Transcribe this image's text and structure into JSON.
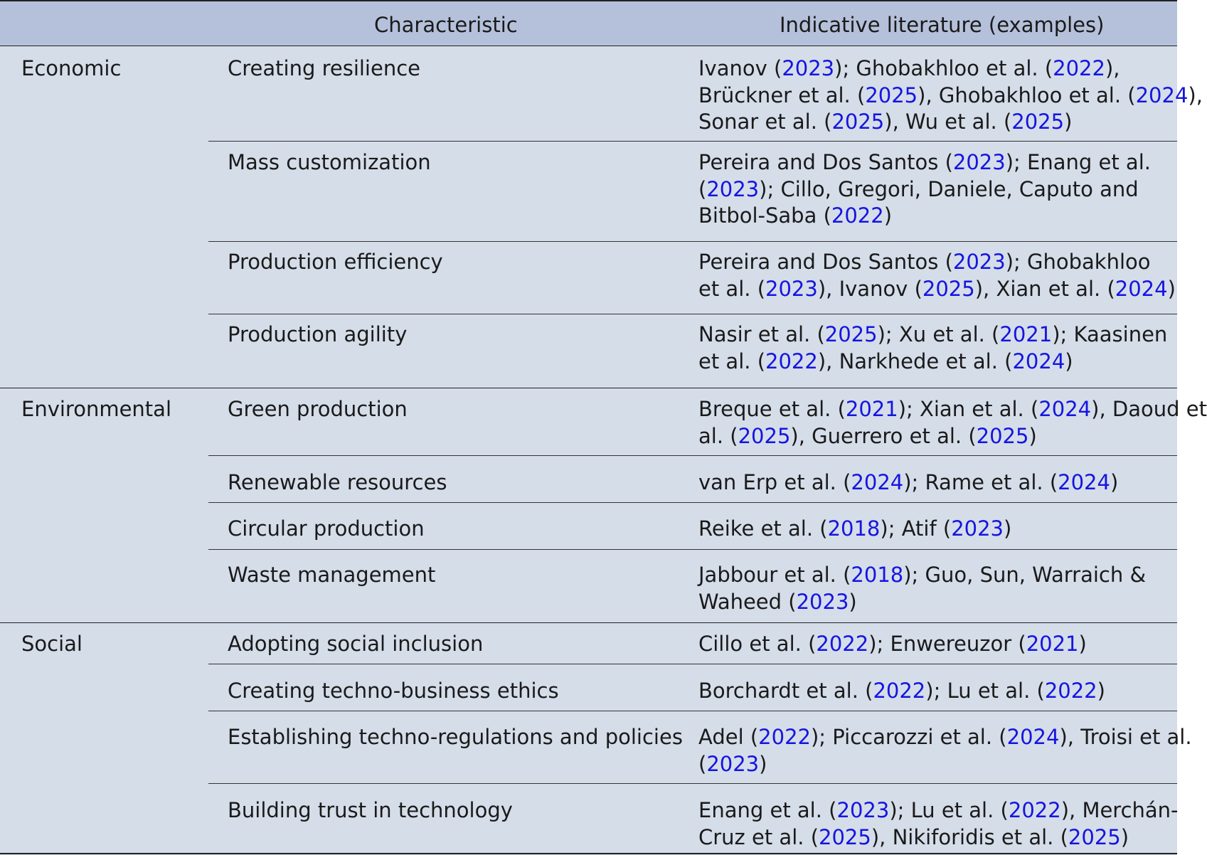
{
  "header": {
    "col2": "Characteristic",
    "col3": "Indicative literature (examples)"
  },
  "groups": [
    {
      "name": "Economic",
      "rows": [
        {
          "characteristic": "Creating resilience",
          "lines": [
            [
              "Ivanov (",
              "2023",
              "); Ghobakhloo et al. (",
              "2022",
              "),"
            ],
            [
              "Brückner et al. (",
              "2025",
              "), Ghobakhloo et al. (",
              "2024",
              "),"
            ],
            [
              "Sonar et al. (",
              "2025",
              "), Wu et al. (",
              "2025",
              ")"
            ]
          ]
        },
        {
          "characteristic": "Mass customization",
          "lines": [
            [
              "Pereira and Dos Santos (",
              "2023",
              "); Enang et al."
            ],
            [
              "(",
              "2023",
              "); Cillo, Gregori, Daniele, Caputo and"
            ],
            [
              "Bitbol-Saba (",
              "2022",
              ")"
            ]
          ]
        },
        {
          "characteristic": "Production efficiency",
          "lines": [
            [
              "Pereira and Dos Santos (",
              "2023",
              "); Ghobakhloo"
            ],
            [
              "et al. (",
              "2023",
              "), Ivanov (",
              "2025",
              "), Xian et al. (",
              "2024",
              ")"
            ]
          ]
        },
        {
          "characteristic": "Production agility",
          "lines": [
            [
              "Nasir et al. (",
              "2025",
              "); Xu et al. (",
              "2021",
              "); Kaasinen"
            ],
            [
              "et al. (",
              "2022",
              "), Narkhede et al. (",
              "2024",
              ")"
            ]
          ]
        }
      ]
    },
    {
      "name": "Environmental",
      "rows": [
        {
          "characteristic": "Green production",
          "lines": [
            [
              "Breque et al. (",
              "2021",
              "); Xian et al. (",
              "2024",
              "), Daoud et"
            ],
            [
              "al. (",
              "2025",
              "), Guerrero et al. (",
              "2025",
              ")"
            ]
          ]
        },
        {
          "characteristic": "Renewable resources",
          "lines": [
            [
              "van Erp et al. (",
              "2024",
              "); Rame et al. (",
              "2024",
              ")"
            ]
          ]
        },
        {
          "characteristic": "Circular production",
          "lines": [
            [
              "Reike et al. (",
              "2018",
              "); Atif (",
              "2023",
              ")"
            ]
          ]
        },
        {
          "characteristic": "Waste management",
          "lines": [
            [
              "Jabbour et al. (",
              "2018",
              "); Guo, Sun, Warraich &"
            ],
            [
              "Waheed (",
              "2023",
              ")"
            ]
          ]
        }
      ]
    },
    {
      "name": "Social",
      "rows": [
        {
          "characteristic": "Adopting social inclusion",
          "lines": [
            [
              "Cillo et al. (",
              "2022",
              "); Enwereuzor (",
              "2021",
              ")"
            ]
          ]
        },
        {
          "characteristic": "Creating techno-business ethics",
          "lines": [
            [
              "Borchardt et al. (",
              "2022",
              "); Lu et al. (",
              "2022",
              ")"
            ]
          ]
        },
        {
          "characteristic": "Establishing techno-regulations and policies",
          "lines": [
            [
              "Adel (",
              "2022",
              "); Piccarozzi et al. (",
              "2024",
              "), Troisi et al."
            ],
            [
              "(",
              "2023",
              ")"
            ]
          ]
        },
        {
          "characteristic": "Building trust in technology",
          "lines": [
            [
              "Enang et al. (",
              "2023",
              "); Lu et al. (",
              "2022",
              "), Merchán-"
            ],
            [
              "Cruz et al. (",
              "2025",
              "), Nikiforidis et al. (",
              "2025",
              ")"
            ]
          ]
        }
      ]
    }
  ],
  "colors": {
    "header_bg": "#b5c1db",
    "body_bg": "#d5dde9",
    "link": "#1515e0"
  }
}
